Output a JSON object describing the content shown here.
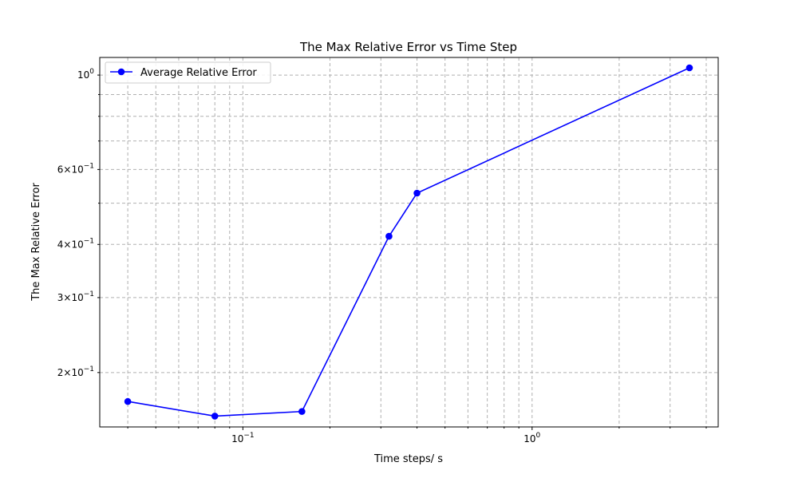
{
  "chart_data": {
    "type": "line",
    "title": "The Max Relative Error vs Time Step",
    "xlabel": "Time steps/ s",
    "ylabel": "The Max Relative Error",
    "x_scale": "log",
    "y_scale": "log",
    "xlim": [
      0.032,
      4.4
    ],
    "ylim": [
      0.149,
      1.1
    ],
    "x_major_ticks": [
      {
        "value": 0.1,
        "base": "10",
        "exp": "−1"
      },
      {
        "value": 1,
        "base": "10",
        "exp": "0"
      }
    ],
    "y_labeled_ticks": [
      {
        "value": 1.0,
        "mant": "",
        "base": "10",
        "exp": "0"
      },
      {
        "value": 0.6,
        "mant": "6×",
        "base": "10",
        "exp": "−1"
      },
      {
        "value": 0.4,
        "mant": "4×",
        "base": "10",
        "exp": "−1"
      },
      {
        "value": 0.3,
        "mant": "3×",
        "base": "10",
        "exp": "−1"
      },
      {
        "value": 0.2,
        "mant": "2×",
        "base": "10",
        "exp": "−1"
      }
    ],
    "y_minor_unlabeled": [
      0.9,
      0.8,
      0.7,
      0.5
    ],
    "grid": true,
    "legend_position": "top-left",
    "series": [
      {
        "name": "Average Relative Error",
        "color": "#0000ff",
        "marker": "circle",
        "x": [
          0.04,
          0.08,
          0.16,
          0.32,
          0.4,
          3.5
        ],
        "y": [
          0.171,
          0.158,
          0.162,
          0.418,
          0.528,
          1.04
        ]
      }
    ]
  }
}
